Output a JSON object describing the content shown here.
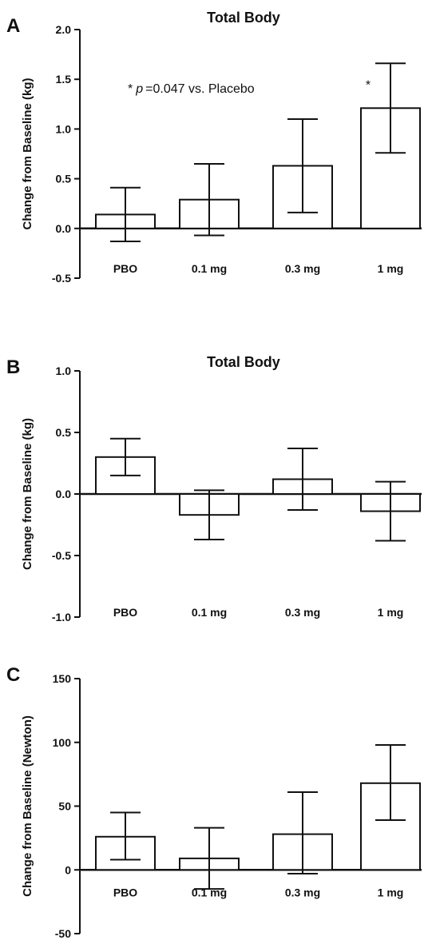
{
  "chart_data": [
    {
      "panel": "A",
      "type": "bar",
      "title": "Total Body",
      "xlabel": "",
      "ylabel": "Change from Baseline (kg)",
      "categories": [
        "PBO",
        "0.1 mg",
        "0.3 mg",
        "1 mg"
      ],
      "values": [
        0.14,
        0.29,
        0.63,
        1.21
      ],
      "error_lower": [
        -0.13,
        -0.07,
        0.16,
        0.76
      ],
      "error_upper": [
        0.41,
        0.65,
        1.1,
        1.66
      ],
      "ylim": [
        -0.5,
        2.0
      ],
      "yticks": [
        "2.0",
        "1.5",
        "1.0",
        "0.5",
        "0.0",
        "-0.5"
      ],
      "significance_markers": [
        "",
        "",
        "",
        "*"
      ],
      "annotation": {
        "star": "*",
        "p": "p",
        "text": "=0.047 vs. Placebo"
      }
    },
    {
      "panel": "B",
      "type": "bar",
      "title": "Total Body",
      "xlabel": "",
      "ylabel": "Change from Baseline (kg)",
      "categories": [
        "PBO",
        "0.1 mg",
        "0.3 mg",
        "1 mg"
      ],
      "values": [
        0.3,
        -0.17,
        0.12,
        -0.14
      ],
      "error_lower": [
        0.15,
        -0.37,
        -0.13,
        -0.38
      ],
      "error_upper": [
        0.45,
        0.03,
        0.37,
        0.1
      ],
      "ylim": [
        -1.0,
        1.0
      ],
      "yticks": [
        "1.0",
        "0.5",
        "0.0",
        "-0.5",
        "-1.0"
      ]
    },
    {
      "panel": "C",
      "type": "bar",
      "title": "",
      "xlabel": "",
      "ylabel": "Change from Baseline (Newton)",
      "categories": [
        "PBO",
        "0.1 mg",
        "0.3 mg",
        "1 mg"
      ],
      "values": [
        26,
        9,
        28,
        68
      ],
      "error_lower": [
        8,
        -15,
        -3,
        39
      ],
      "error_upper": [
        45,
        33,
        61,
        98
      ],
      "ylim": [
        -50,
        150
      ],
      "yticks": [
        "150",
        "100",
        "50",
        "0",
        "-50"
      ]
    }
  ]
}
